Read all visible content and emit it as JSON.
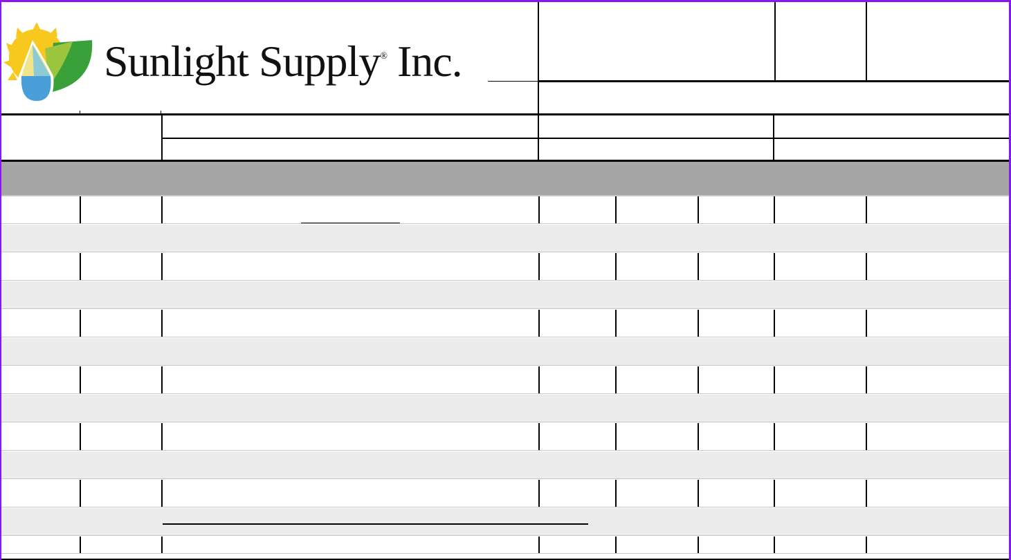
{
  "logo": {
    "company_name": "Sunlight Supply",
    "registered_mark": "®",
    "suffix": "Inc.",
    "colors": {
      "sun": "#f7c81e",
      "drop_top": "#f0e58a",
      "drop_mid": "#8ccbd6",
      "drop_bottom": "#4a9fd8",
      "leaf_light": "#9cc53f",
      "leaf_dark": "#3aa13a"
    }
  },
  "form": {
    "border_color": "#8a17ee",
    "section_band_color": "#a6a6a6",
    "alt_row_color": "#ececec",
    "rows": [
      {
        "cells": [
          "",
          "",
          "",
          "",
          "",
          "",
          "",
          ""
        ]
      },
      {
        "cells": [
          ""
        ]
      },
      {
        "cells": [
          "",
          "",
          "",
          "",
          "",
          "",
          "",
          ""
        ]
      },
      {
        "cells": [
          ""
        ]
      },
      {
        "cells": [
          "",
          "",
          "",
          "",
          "",
          "",
          "",
          ""
        ]
      },
      {
        "cells": [
          ""
        ]
      },
      {
        "cells": [
          "",
          "",
          "",
          "",
          "",
          "",
          "",
          ""
        ]
      },
      {
        "cells": [
          ""
        ]
      },
      {
        "cells": [
          "",
          "",
          "",
          "",
          "",
          "",
          "",
          ""
        ]
      },
      {
        "cells": [
          ""
        ]
      },
      {
        "cells": [
          "",
          "",
          "",
          "",
          "",
          "",
          "",
          ""
        ]
      },
      {
        "cells": [
          ""
        ]
      },
      {
        "cells": [
          "",
          "",
          "",
          "",
          "",
          "",
          "",
          ""
        ]
      }
    ]
  }
}
